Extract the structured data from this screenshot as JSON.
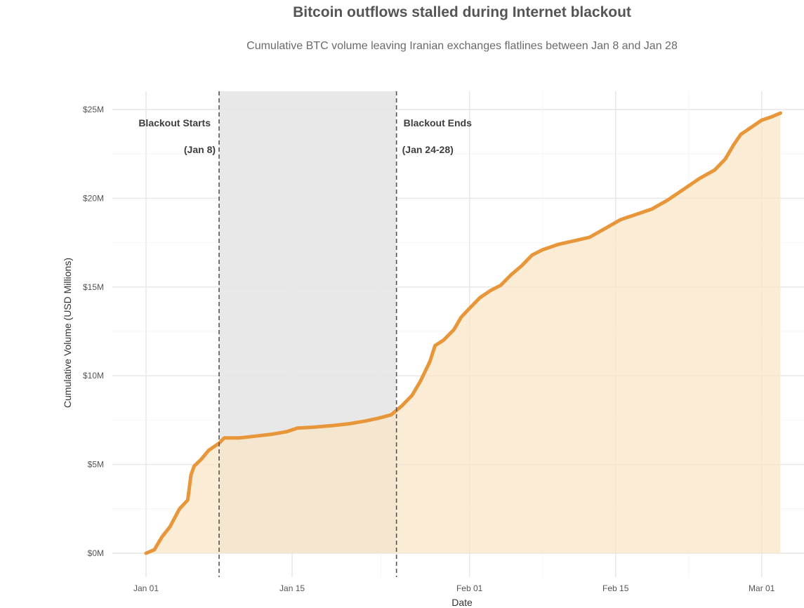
{
  "chart_data": {
    "type": "area",
    "title": "Bitcoin outflows stalled during Internet blackout",
    "subtitle": "Cumulative BTC volume leaving Iranian exchanges flatlines between Jan 8 and Jan 28",
    "xlabel": "Date",
    "ylabel": "Cumulative Volume (USD Millions)",
    "ylim": [
      0,
      25
    ],
    "xlim_days": [
      -1,
      62
    ],
    "y_ticks": [
      {
        "value": 0,
        "label": "$0M"
      },
      {
        "value": 5,
        "label": "$5M"
      },
      {
        "value": 10,
        "label": "$10M"
      },
      {
        "value": 15,
        "label": "$15M"
      },
      {
        "value": 20,
        "label": "$20M"
      },
      {
        "value": 25,
        "label": "$25M"
      }
    ],
    "x_ticks": [
      {
        "day": 0,
        "label": "Jan 01"
      },
      {
        "day": 14,
        "label": "Jan 15"
      },
      {
        "day": 31,
        "label": "Feb 01"
      },
      {
        "day": 45,
        "label": "Feb 15"
      },
      {
        "day": 59,
        "label": "Mar 01"
      }
    ],
    "x_unit": "days since Jan 01",
    "series": [
      {
        "name": "Cumulative BTC outflow",
        "color": "#e8963a",
        "fill_color": "#f9e6c8",
        "points": [
          [
            0,
            0
          ],
          [
            0.8,
            0.2
          ],
          [
            1.5,
            0.9
          ],
          [
            2.3,
            1.5
          ],
          [
            3.2,
            2.5
          ],
          [
            4.0,
            3.0
          ],
          [
            4.3,
            4.4
          ],
          [
            4.6,
            4.9
          ],
          [
            5.3,
            5.3
          ],
          [
            6.0,
            5.8
          ],
          [
            7.0,
            6.2
          ],
          [
            7.5,
            6.5
          ],
          [
            9.0,
            6.5
          ],
          [
            10.5,
            6.6
          ],
          [
            12.0,
            6.7
          ],
          [
            13.5,
            6.85
          ],
          [
            14.5,
            7.05
          ],
          [
            16.0,
            7.1
          ],
          [
            18.0,
            7.2
          ],
          [
            19.5,
            7.3
          ],
          [
            21.0,
            7.45
          ],
          [
            22.2,
            7.6
          ],
          [
            23.5,
            7.8
          ],
          [
            24.5,
            8.3
          ],
          [
            25.5,
            8.9
          ],
          [
            26.3,
            9.7
          ],
          [
            27.2,
            10.8
          ],
          [
            27.7,
            11.7
          ],
          [
            28.5,
            12.0
          ],
          [
            29.5,
            12.6
          ],
          [
            30.2,
            13.3
          ],
          [
            31.0,
            13.8
          ],
          [
            32.0,
            14.4
          ],
          [
            33.0,
            14.8
          ],
          [
            34.0,
            15.1
          ],
          [
            35.0,
            15.7
          ],
          [
            36.0,
            16.2
          ],
          [
            37.0,
            16.8
          ],
          [
            38.0,
            17.1
          ],
          [
            39.5,
            17.4
          ],
          [
            41.0,
            17.6
          ],
          [
            42.5,
            17.8
          ],
          [
            44.0,
            18.3
          ],
          [
            45.5,
            18.8
          ],
          [
            47.0,
            19.1
          ],
          [
            48.5,
            19.4
          ],
          [
            50.0,
            19.9
          ],
          [
            51.5,
            20.5
          ],
          [
            53.0,
            21.1
          ],
          [
            54.5,
            21.6
          ],
          [
            55.5,
            22.2
          ],
          [
            56.3,
            23.0
          ],
          [
            57.0,
            23.6
          ],
          [
            58.0,
            24.0
          ],
          [
            59.0,
            24.4
          ],
          [
            60.0,
            24.6
          ],
          [
            60.8,
            24.8
          ]
        ]
      }
    ],
    "highlight_region": {
      "start_day": 7,
      "end_day": 24,
      "color": "#e6e6e6"
    },
    "annotations": [
      {
        "day": 7,
        "line1": "Blackout Starts",
        "line2": "(Jan 8)",
        "align": "left-of-line"
      },
      {
        "day": 24,
        "line1": "Blackout Ends",
        "line2": "(Jan 24-28)",
        "align": "right-of-line"
      }
    ],
    "grid": true,
    "legend": "none"
  }
}
